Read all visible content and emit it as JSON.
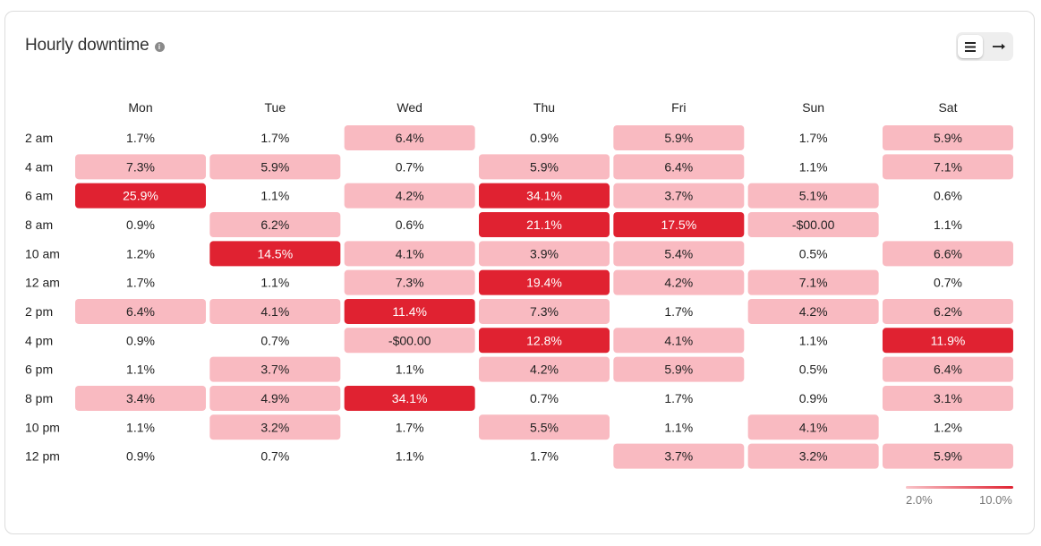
{
  "header": {
    "title": "Hourly downtime",
    "info_icon": "info-icon",
    "view_toggle": {
      "list_icon": "list-icon",
      "arrow_icon": "arrow-right-icon",
      "active": "list"
    }
  },
  "chart_data": {
    "type": "heatmap",
    "title": "Hourly downtime",
    "columns": [
      "Mon",
      "Tue",
      "Wed",
      "Thu",
      "Fri",
      "Sun",
      "Sat"
    ],
    "rows": [
      "2 am",
      "4 am",
      "6 am",
      "8 am",
      "10 am",
      "12 am",
      "2 pm",
      "4 pm",
      "6 pm",
      "8 pm",
      "10 pm",
      "12 pm"
    ],
    "cells": [
      [
        "1.7%",
        "1.7%",
        "6.4%",
        "0.9%",
        "5.9%",
        "1.7%",
        "5.9%"
      ],
      [
        "7.3%",
        "5.9%",
        "0.7%",
        "5.9%",
        "6.4%",
        "1.1%",
        "7.1%"
      ],
      [
        "25.9%",
        "1.1%",
        "4.2%",
        "34.1%",
        "3.7%",
        "5.1%",
        "0.6%"
      ],
      [
        "0.9%",
        "6.2%",
        "0.6%",
        "21.1%",
        "17.5%",
        "-$00.00",
        "1.1%"
      ],
      [
        "1.2%",
        "14.5%",
        "4.1%",
        "3.9%",
        "5.4%",
        "0.5%",
        "6.6%"
      ],
      [
        "1.7%",
        "1.1%",
        "7.3%",
        "19.4%",
        "4.2%",
        "7.1%",
        "0.7%"
      ],
      [
        "6.4%",
        "4.1%",
        "11.4%",
        "7.3%",
        "1.7%",
        "4.2%",
        "6.2%"
      ],
      [
        "0.9%",
        "0.7%",
        "-$00.00",
        "12.8%",
        "4.1%",
        "1.1%",
        "11.9%"
      ],
      [
        "1.1%",
        "3.7%",
        "1.1%",
        "4.2%",
        "5.9%",
        "0.5%",
        "6.4%"
      ],
      [
        "3.4%",
        "4.9%",
        "34.1%",
        "0.7%",
        "1.7%",
        "0.9%",
        "3.1%"
      ],
      [
        "1.1%",
        "3.2%",
        "1.7%",
        "5.5%",
        "1.1%",
        "4.1%",
        "1.2%"
      ],
      [
        "0.9%",
        "0.7%",
        "1.1%",
        "1.7%",
        "3.7%",
        "3.2%",
        "5.9%"
      ]
    ],
    "levels": [
      [
        0,
        0,
        1,
        0,
        1,
        0,
        1
      ],
      [
        1,
        1,
        0,
        1,
        1,
        0,
        1
      ],
      [
        2,
        0,
        1,
        2,
        1,
        1,
        0
      ],
      [
        0,
        1,
        0,
        2,
        2,
        1,
        0
      ],
      [
        0,
        2,
        1,
        1,
        1,
        0,
        1
      ],
      [
        0,
        0,
        1,
        2,
        1,
        1,
        0
      ],
      [
        1,
        1,
        2,
        1,
        0,
        1,
        1
      ],
      [
        0,
        0,
        1,
        2,
        1,
        0,
        2
      ],
      [
        0,
        1,
        0,
        1,
        1,
        0,
        1
      ],
      [
        1,
        1,
        2,
        0,
        0,
        0,
        1
      ],
      [
        0,
        1,
        0,
        1,
        0,
        1,
        0
      ],
      [
        0,
        0,
        0,
        0,
        1,
        1,
        1
      ]
    ],
    "colors": {
      "none": "#ffffff",
      "light": "#f9bac1",
      "strong": "#e02231",
      "text_dark": "#222222",
      "text_light": "#ffffff"
    },
    "legend": {
      "min_label": "2.0%",
      "max_label": "10.0%",
      "position": "bottom-right"
    }
  }
}
